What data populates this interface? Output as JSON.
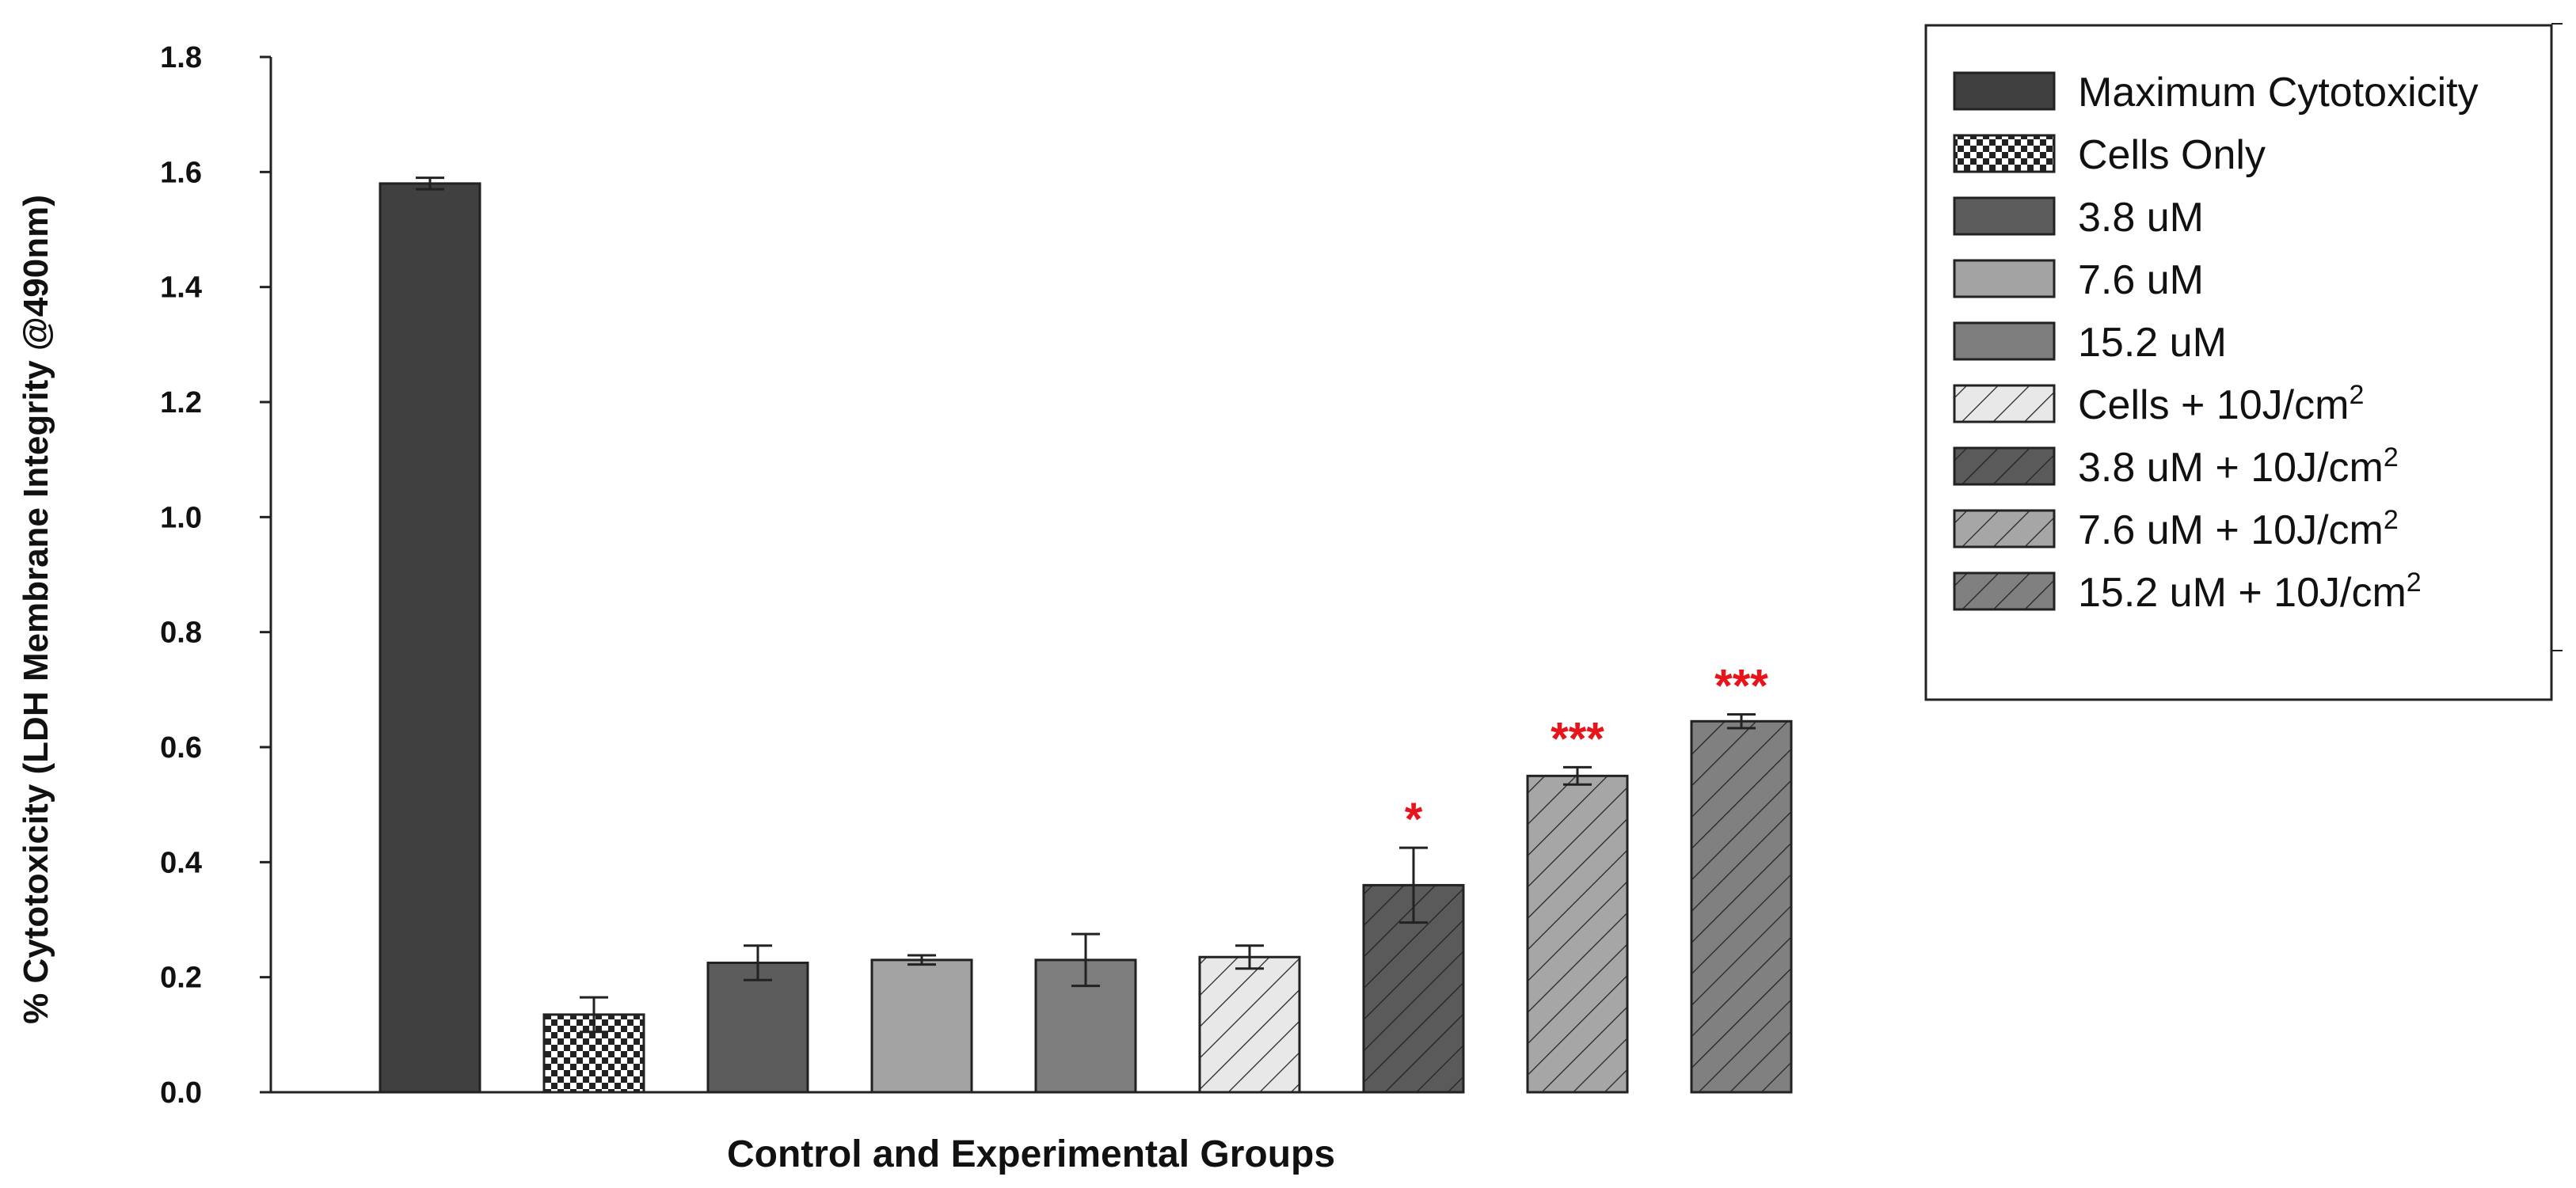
{
  "chart_data": {
    "type": "bar",
    "title": "",
    "xlabel": "Control and Experimental Groups",
    "ylabel": "% Cytotoxicity (LDH Membrane Integrity @490nm)",
    "ylim": [
      0.0,
      1.8
    ],
    "yticks": [
      "0.0",
      "0.2",
      "0.4",
      "0.6",
      "0.8",
      "1.0",
      "1.2",
      "1.4",
      "1.6",
      "1.8"
    ],
    "grid": false,
    "legend_position": "top-right",
    "categories": [
      "Maximum Cytotoxicity",
      "Cells Only",
      "3.8 uM",
      "7.6 uM",
      "15.2 uM",
      "Cells + 10J/cm2",
      "3.8 uM + 10J/cm2",
      "7.6 uM + 10J/cm2",
      "15.2 uM + 10J/cm2"
    ],
    "values": [
      1.58,
      0.135,
      0.225,
      0.23,
      0.23,
      0.235,
      0.36,
      0.55,
      0.645
    ],
    "errors": [
      0.01,
      0.03,
      0.03,
      0.008,
      0.045,
      0.02,
      0.065,
      0.015,
      0.012
    ],
    "significance": [
      "",
      "",
      "",
      "",
      "",
      "",
      "*",
      "***",
      "***"
    ],
    "series_styles": [
      {
        "fill": "#404040",
        "pattern": "solid"
      },
      {
        "fill": "#4d4d4d",
        "pattern": "checker"
      },
      {
        "fill": "#5c5c5c",
        "pattern": "solid"
      },
      {
        "fill": "#a3a3a3",
        "pattern": "solid"
      },
      {
        "fill": "#7d7d7d",
        "pattern": "solid"
      },
      {
        "fill": "#e8e8e8",
        "pattern": "hatch"
      },
      {
        "fill": "#5a5a5a",
        "pattern": "hatch"
      },
      {
        "fill": "#a6a6a6",
        "pattern": "hatch"
      },
      {
        "fill": "#808080",
        "pattern": "hatch"
      }
    ],
    "legend": [
      {
        "label": "Maximum Cytotoxicity",
        "sup": ""
      },
      {
        "label": "Cells Only",
        "sup": ""
      },
      {
        "label": "3.8 uM",
        "sup": ""
      },
      {
        "label": "7.6 uM",
        "sup": ""
      },
      {
        "label": "15.2 uM",
        "sup": ""
      },
      {
        "label": "Cells + 10J/cm",
        "sup": "2"
      },
      {
        "label": "3.8 uM + 10J/cm",
        "sup": "2"
      },
      {
        "label": "7.6 uM + 10J/cm",
        "sup": "2"
      },
      {
        "label": "15.2 uM + 10J/cm",
        "sup": "2"
      }
    ],
    "significance_color": "#e8141b"
  }
}
